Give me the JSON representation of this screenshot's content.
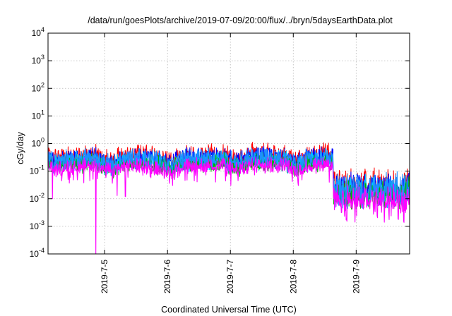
{
  "chart_data": {
    "type": "line",
    "title": "/data/run/goesPlots/archive/2019-07-09/20:00/flux/../bryn/5daysEarthData.plot",
    "xlabel": "Coordinated Universal Time (UTC)",
    "ylabel": "cGy/day",
    "y_scale": "log",
    "ylim": [
      0.0001,
      10000
    ],
    "xlim": [
      4.1,
      9.85
    ],
    "x_unit": "day of 2019-07",
    "y_ticks": [
      {
        "value": 0.0001,
        "base": "10",
        "exp": "-4"
      },
      {
        "value": 0.001,
        "base": "10",
        "exp": "-3"
      },
      {
        "value": 0.01,
        "base": "10",
        "exp": "-2"
      },
      {
        "value": 0.1,
        "base": "10",
        "exp": "-1"
      },
      {
        "value": 1,
        "base": "10",
        "exp": "0"
      },
      {
        "value": 10,
        "base": "10",
        "exp": "1"
      },
      {
        "value": 100,
        "base": "10",
        "exp": "2"
      },
      {
        "value": 1000,
        "base": "10",
        "exp": "3"
      },
      {
        "value": 10000,
        "base": "10",
        "exp": "4"
      }
    ],
    "x_ticks": [
      {
        "value": 5,
        "label": "2019-7-5"
      },
      {
        "value": 6,
        "label": "2019-7-6"
      },
      {
        "value": 7,
        "label": "2019-7-7"
      },
      {
        "value": 8,
        "label": "2019-7-8"
      },
      {
        "value": 9,
        "label": "2019-7-9"
      }
    ],
    "grid": true,
    "series": [
      {
        "color": "#ff0000",
        "level": 1.25,
        "spike": 1.6
      },
      {
        "color": "#0000ff",
        "level": 1.0,
        "spike": 1.5
      },
      {
        "color": "#00c8ff",
        "level": 0.8,
        "spike": 1.4
      },
      {
        "color": "#00b000",
        "level": 0.68,
        "spike": 1.3
      },
      {
        "color": "#1e90ff",
        "level": 0.95,
        "spike": 1.5
      },
      {
        "color": "#ff00ff",
        "level": 0.55,
        "spike": 1.0
      }
    ],
    "baseline": [
      {
        "x": 4.1,
        "y": 0.28
      },
      {
        "x": 4.2,
        "y": 0.2
      },
      {
        "x": 4.35,
        "y": 0.25
      },
      {
        "x": 4.5,
        "y": 0.27
      },
      {
        "x": 4.85,
        "y": 0.3
      },
      {
        "x": 5.0,
        "y": 0.2
      },
      {
        "x": 5.15,
        "y": 0.19
      },
      {
        "x": 5.35,
        "y": 0.29
      },
      {
        "x": 5.8,
        "y": 0.28
      },
      {
        "x": 6.05,
        "y": 0.16
      },
      {
        "x": 6.25,
        "y": 0.28
      },
      {
        "x": 6.9,
        "y": 0.3
      },
      {
        "x": 7.1,
        "y": 0.2
      },
      {
        "x": 7.35,
        "y": 0.33
      },
      {
        "x": 7.85,
        "y": 0.3
      },
      {
        "x": 8.05,
        "y": 0.17
      },
      {
        "x": 8.2,
        "y": 0.26
      },
      {
        "x": 8.35,
        "y": 0.3
      },
      {
        "x": 8.63,
        "y": 0.31
      },
      {
        "x": 8.64,
        "y": 0.025
      },
      {
        "x": 8.9,
        "y": 0.022
      },
      {
        "x": 9.2,
        "y": 0.024
      },
      {
        "x": 9.5,
        "y": 0.021
      },
      {
        "x": 9.85,
        "y": 0.023
      }
    ],
    "dips": [
      {
        "x": 4.17,
        "y": 0.01
      },
      {
        "x": 4.86,
        "y": 0.0001
      },
      {
        "x": 5.2,
        "y": 0.013
      },
      {
        "x": 5.33,
        "y": 0.012
      },
      {
        "x": 6.08,
        "y": 0.03
      },
      {
        "x": 7.12,
        "y": 0.045
      },
      {
        "x": 8.08,
        "y": 0.03
      }
    ]
  }
}
